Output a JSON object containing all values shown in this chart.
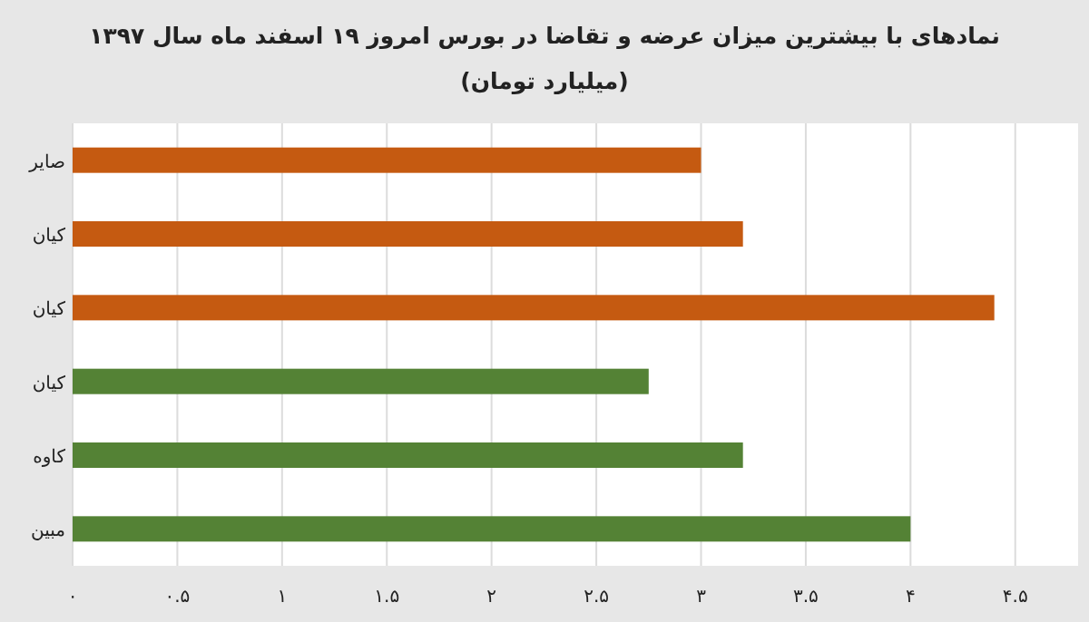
{
  "chart_data": {
    "type": "bar",
    "orientation": "horizontal",
    "title": "نمادهای با بیشترین میزان عرضه و تقاضا در بورس امروز ۱۹ اسفند ماه سال ۱۳۹۷",
    "subtitle": "(میلیارد تومان)",
    "categories": [
      "صایر",
      "کیان",
      "کیان",
      "کیان",
      "کاوه",
      "مبین"
    ],
    "values": [
      3.0,
      3.2,
      4.4,
      2.75,
      3.2,
      4.0
    ],
    "colors": [
      "#c55a11",
      "#c55a11",
      "#c55a11",
      "#548235",
      "#548235",
      "#548235"
    ],
    "xlim": [
      0,
      4.8
    ],
    "xticks": [
      {
        "value": 0,
        "label": "۰"
      },
      {
        "value": 0.5,
        "label": "۰.۵"
      },
      {
        "value": 1,
        "label": "۱"
      },
      {
        "value": 1.5,
        "label": "۱.۵"
      },
      {
        "value": 2,
        "label": "۲"
      },
      {
        "value": 2.5,
        "label": "۲.۵"
      },
      {
        "value": 3,
        "label": "۳"
      },
      {
        "value": 3.5,
        "label": "۳.۵"
      },
      {
        "value": 4,
        "label": "۴"
      },
      {
        "value": 4.5,
        "label": "۴.۵"
      }
    ],
    "grid": "x"
  }
}
